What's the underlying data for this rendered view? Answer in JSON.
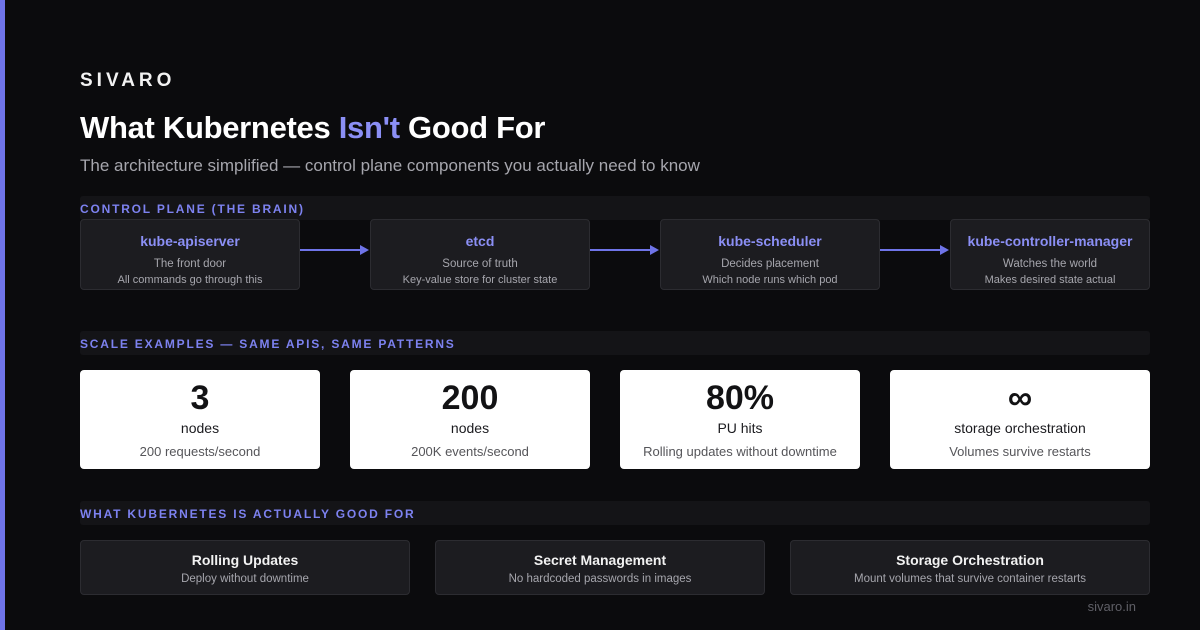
{
  "brand": "SIVARO",
  "title": {
    "before": "What Kubernetes ",
    "highlight": "Isn't",
    "after": " Good For"
  },
  "subtitle": "The architecture simplified — control plane components you actually need to know",
  "sections": {
    "control_plane": "CONTROL PLANE (THE BRAIN)",
    "scale": "SCALE EXAMPLES — SAME APIS, SAME PATTERNS",
    "good_for": "WHAT KUBERNETES IS ACTUALLY GOOD FOR"
  },
  "control_plane": [
    {
      "name": "kube-apiserver",
      "desc1": "The front door",
      "desc2": "All commands go through this"
    },
    {
      "name": "etcd",
      "desc1": "Source of truth",
      "desc2": "Key-value store for cluster state"
    },
    {
      "name": "kube-scheduler",
      "desc1": "Decides placement",
      "desc2": "Which node runs which pod"
    },
    {
      "name": "kube-controller-manager",
      "desc1": "Watches the world",
      "desc2": "Makes desired state actual"
    }
  ],
  "scale_examples": [
    {
      "value": "3",
      "unit": "nodes",
      "note": "200 requests/second"
    },
    {
      "value": "200",
      "unit": "nodes",
      "note": "200K events/second"
    },
    {
      "value": "80%",
      "unit": "PU hits",
      "note": "Rolling updates without downtime"
    },
    {
      "value": "∞",
      "unit": "storage orchestration",
      "note": "Volumes survive restarts"
    }
  ],
  "good_for": [
    {
      "title": "Rolling Updates",
      "desc": "Deploy without downtime"
    },
    {
      "title": "Secret Management",
      "desc": "No hardcoded passwords in images"
    },
    {
      "title": "Storage Orchestration",
      "desc": "Mount volumes that survive container restarts"
    }
  ],
  "footer": "sivaro.in",
  "colors": {
    "accent": "#6f74e8",
    "highlight": "#8b8ff5",
    "background": "#0b0b0d"
  }
}
